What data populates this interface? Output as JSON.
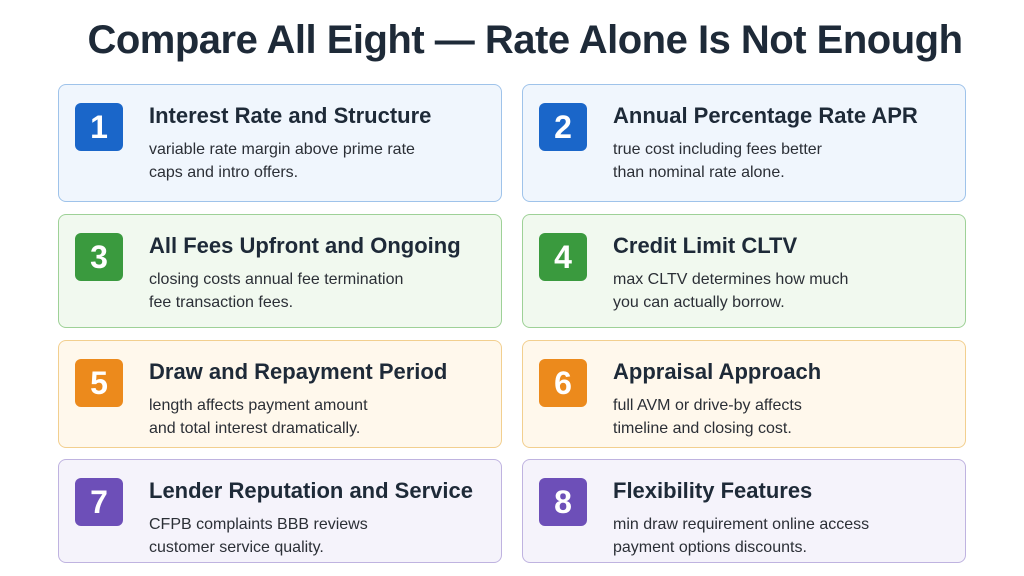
{
  "title": "Compare All Eight — Rate Alone Is Not Enough",
  "cards": [
    {
      "number": "1",
      "title": "Interest Rate and Structure",
      "lines": [
        "variable rate margin above prime rate",
        "caps and intro offers."
      ]
    },
    {
      "number": "2",
      "title": "Annual Percentage Rate APR",
      "lines": [
        "true cost including fees better",
        "than nominal rate alone."
      ]
    },
    {
      "number": "3",
      "title": "All Fees Upfront and Ongoing",
      "lines": [
        "closing costs annual fee termination",
        "fee transaction fees."
      ]
    },
    {
      "number": "4",
      "title": "Credit Limit CLTV",
      "lines": [
        "max CLTV determines how much",
        "you can actually borrow."
      ]
    },
    {
      "number": "5",
      "title": "Draw and Repayment Period",
      "lines": [
        "length affects payment amount",
        "and total interest dramatically."
      ]
    },
    {
      "number": "6",
      "title": "Appraisal Approach",
      "lines": [
        "full AVM or drive-by affects",
        "timeline and closing cost."
      ]
    },
    {
      "number": "7",
      "title": "Lender Reputation and Service",
      "lines": [
        "CFPB complaints BBB reviews",
        "customer service quality."
      ]
    },
    {
      "number": "8",
      "title": "Flexibility Features",
      "lines": [
        "min draw requirement online access",
        "payment options discounts."
      ]
    }
  ]
}
